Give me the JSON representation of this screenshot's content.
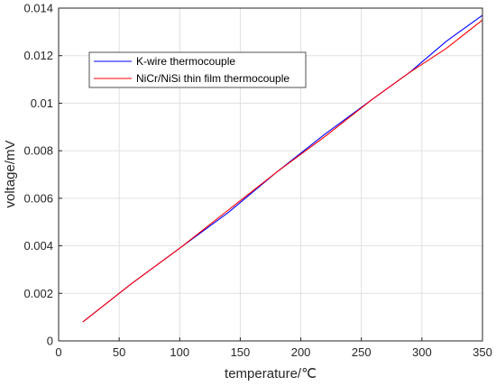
{
  "chart_data": {
    "type": "line",
    "title": "",
    "xlabel": "temperature/℃",
    "ylabel": "voltage/mV",
    "xlim": [
      0,
      350
    ],
    "ylim": [
      0,
      0.014
    ],
    "xticks": [
      "0",
      "50",
      "100",
      "150",
      "200",
      "250",
      "300",
      "350"
    ],
    "yticks": [
      "0",
      "0.002",
      "0.004",
      "0.006",
      "0.008",
      "0.01",
      "0.012",
      "0.014"
    ],
    "grid": true,
    "legend_position": "top-left",
    "series": [
      {
        "name": "K-wire thermocouple",
        "color": "#0000ff",
        "x": [
          20,
          60,
          100,
          140,
          180,
          220,
          260,
          290,
          320,
          350
        ],
        "y": [
          0.0008,
          0.0024,
          0.0039,
          0.0054,
          0.0071,
          0.0087,
          0.0102,
          0.0113,
          0.0126,
          0.0137
        ]
      },
      {
        "name": "NiCr/NiSi thin film thermocouple",
        "color": "#ff0000",
        "x": [
          20,
          60,
          100,
          140,
          180,
          220,
          260,
          290,
          320,
          350
        ],
        "y": [
          0.0008,
          0.0024,
          0.0039,
          0.0055,
          0.0071,
          0.0086,
          0.0102,
          0.0113,
          0.0123,
          0.0135
        ]
      }
    ]
  }
}
